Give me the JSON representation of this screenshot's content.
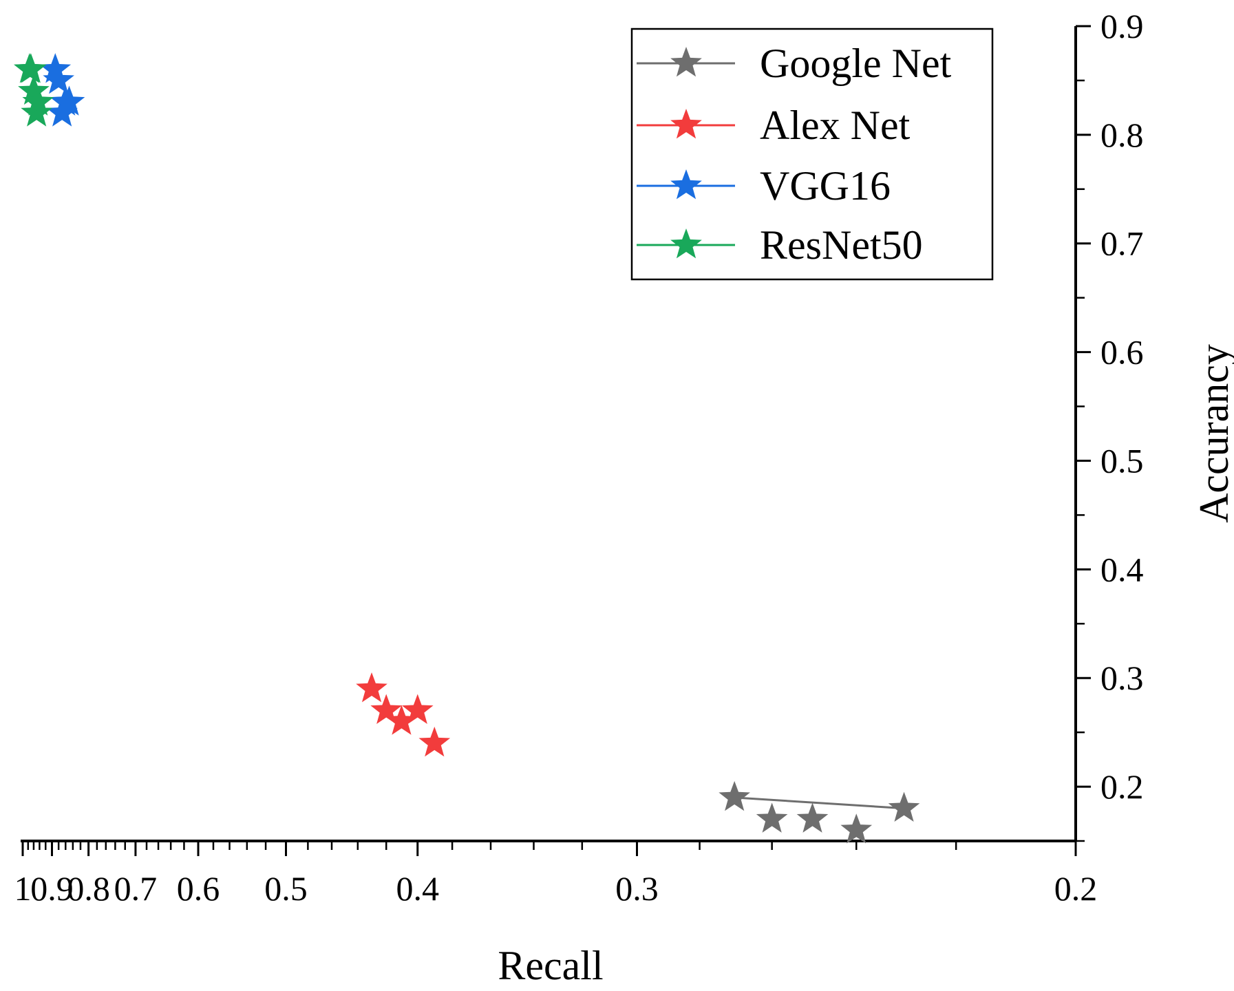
{
  "chart_data": {
    "type": "scatter",
    "title": "",
    "xlabel": "Recall",
    "ylabel": "Accurancy",
    "x_axis": {
      "scale": "reciprocal",
      "reversed": true,
      "range": [
        1,
        0.2
      ],
      "tick_labels": [
        "1",
        "0.9",
        "0.8",
        "0.7",
        "0.6",
        "0.5",
        "0.4",
        "0.3",
        "0.2"
      ],
      "minor_ticks": [
        0.98,
        0.96,
        0.94,
        0.92,
        0.88,
        0.86,
        0.84,
        0.82,
        0.78,
        0.76,
        0.74,
        0.72,
        0.68,
        0.66,
        0.64,
        0.62,
        0.58,
        0.56,
        0.54,
        0.52,
        0.48,
        0.46,
        0.44,
        0.42,
        0.38,
        0.36,
        0.34,
        0.32,
        0.28,
        0.26,
        0.24,
        0.22
      ]
    },
    "y_axis": {
      "position": "right",
      "range": [
        0.15,
        0.9
      ],
      "tick_labels": [
        "0.2",
        "0.3",
        "0.4",
        "0.5",
        "0.6",
        "0.7",
        "0.8",
        "0.9"
      ],
      "minor_ticks": [
        0.15,
        0.25,
        0.35,
        0.45,
        0.55,
        0.65,
        0.75,
        0.85
      ]
    },
    "legend": {
      "placement": "top-right",
      "boxed": true
    },
    "series": [
      {
        "name": "Google Net",
        "color": "#6e6e6e",
        "marker": "star",
        "line": true,
        "points": [
          {
            "x": 0.27,
            "y": 0.19
          },
          {
            "x": 0.26,
            "y": 0.17
          },
          {
            "x": 0.25,
            "y": 0.17
          },
          {
            "x": 0.24,
            "y": 0.16
          },
          {
            "x": 0.23,
            "y": 0.18
          }
        ]
      },
      {
        "name": "Alex Net",
        "color": "#f23c3c",
        "marker": "star",
        "line": false,
        "points": [
          {
            "x": 0.43,
            "y": 0.29
          },
          {
            "x": 0.42,
            "y": 0.27
          },
          {
            "x": 0.41,
            "y": 0.26
          },
          {
            "x": 0.4,
            "y": 0.27
          },
          {
            "x": 0.39,
            "y": 0.24
          }
        ]
      },
      {
        "name": "VGG16",
        "color": "#1a6ee0",
        "marker": "star",
        "line": false,
        "points": [
          {
            "x": 0.89,
            "y": 0.86
          },
          {
            "x": 0.88,
            "y": 0.85
          },
          {
            "x": 0.87,
            "y": 0.82
          },
          {
            "x": 0.86,
            "y": 0.83
          },
          {
            "x": 0.85,
            "y": 0.83
          }
        ]
      },
      {
        "name": "ResNet50",
        "color": "#19a85a",
        "marker": "star",
        "line": false,
        "points": [
          {
            "x": 0.97,
            "y": 0.86
          },
          {
            "x": 0.96,
            "y": 0.84
          },
          {
            "x": 0.95,
            "y": 0.82
          },
          {
            "x": 0.945,
            "y": 0.83
          },
          {
            "x": 0.975,
            "y": 0.86
          }
        ]
      }
    ]
  }
}
